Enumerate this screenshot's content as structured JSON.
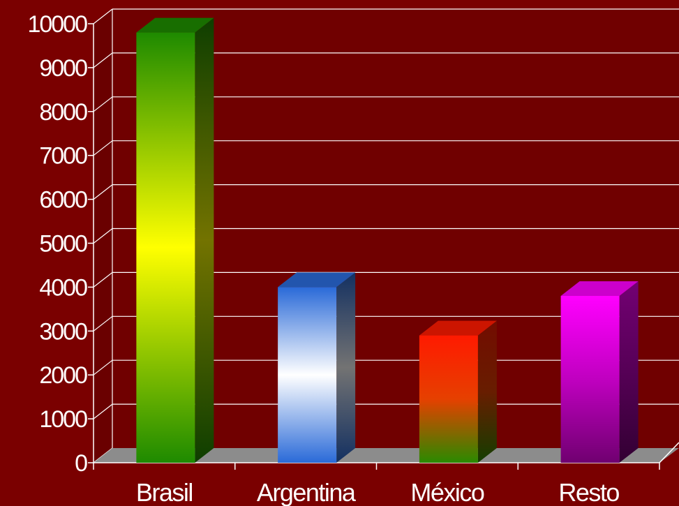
{
  "chart_data": {
    "type": "bar",
    "categories": [
      "Brasil",
      "Argentina",
      "México",
      "Resto"
    ],
    "values": [
      9800,
      4000,
      2900,
      3800
    ],
    "ylim": [
      0,
      10000
    ],
    "yticks": [
      0,
      1000,
      2000,
      3000,
      4000,
      5000,
      6000,
      7000,
      8000,
      9000,
      10000
    ],
    "title": "",
    "xlabel": "",
    "ylabel": "",
    "grid": true,
    "legend": "none",
    "bar_colors": [
      [
        "#1e8a00",
        "#ffff00",
        "#1e8a00"
      ],
      [
        "#2a6ad8",
        "#ffffff",
        "#2a6ad8"
      ],
      [
        "#ff1a00",
        "#e64000",
        "#2a8a00"
      ],
      [
        "#ff00ff",
        "#c000c0",
        "#700070"
      ]
    ]
  }
}
